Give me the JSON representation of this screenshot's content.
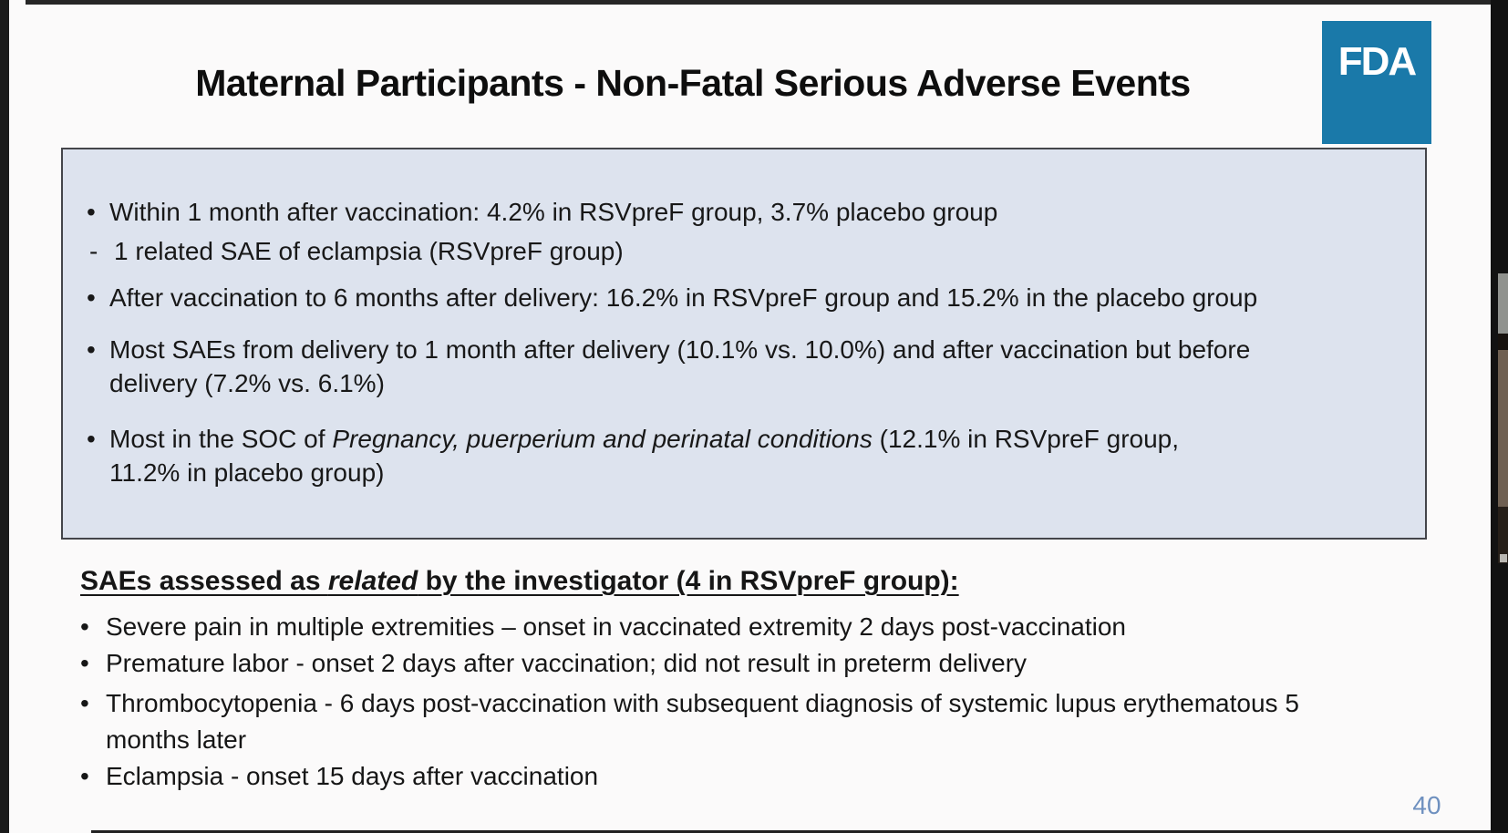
{
  "title": "Maternal Participants - Non-Fatal Serious Adverse Events",
  "logo": {
    "text": "FDA"
  },
  "page_number": "40",
  "markers": {
    "bullet": "•",
    "dash": "-"
  },
  "summary_box": {
    "bullets": [
      {
        "text": "Within 1 month after vaccination: 4.2% in RSVpreF group, 3.7% placebo group",
        "sub": "1 related SAE of eclampsia (RSVpreF group)"
      },
      {
        "text": "After vaccination to 6 months after delivery: 16.2% in RSVpreF group and 15.2% in the placebo group"
      },
      {
        "text": "Most SAEs from delivery to 1 month after delivery (10.1% vs. 10.0%) and after vaccination but before delivery (7.2% vs. 6.1%)"
      },
      {
        "prefix": "Most in the SOC of ",
        "italic": "Pregnancy, puerperium and perinatal conditions",
        "suffix": " (12.1% in RSVpreF group, 11.2% in placebo group)"
      }
    ]
  },
  "related_section": {
    "heading": {
      "prefix": "SAEs assessed as ",
      "italic": "related",
      "suffix": " by the investigator (4 in RSVpreF group):"
    },
    "bullets": [
      "Severe pain in multiple extremities – onset in vaccinated extremity 2 days post-vaccination",
      "Premature labor - onset 2 days after vaccination; did not result in preterm delivery",
      "Thrombocytopenia - 6 days post-vaccination with subsequent diagnosis of systemic lupus erythematous 5 months later",
      "Eclampsia - onset 15 days after vaccination"
    ]
  },
  "colors": {
    "logo_blue": "#1a79a9",
    "box_fill": "#dde3ee",
    "box_border": "#44454a",
    "page_number_blue": "#6e90bf"
  }
}
